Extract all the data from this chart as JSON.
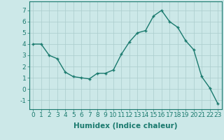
{
  "x": [
    0,
    1,
    2,
    3,
    4,
    5,
    6,
    7,
    8,
    9,
    10,
    11,
    12,
    13,
    14,
    15,
    16,
    17,
    18,
    19,
    20,
    21,
    22,
    23
  ],
  "y": [
    4.0,
    4.0,
    3.0,
    2.7,
    1.5,
    1.1,
    1.0,
    0.9,
    1.4,
    1.4,
    1.7,
    3.1,
    4.2,
    5.0,
    5.2,
    6.5,
    7.0,
    6.0,
    5.5,
    4.3,
    3.5,
    1.1,
    0.1,
    -1.3
  ],
  "xlim": [
    -0.5,
    23.5
  ],
  "ylim": [
    -1.8,
    7.8
  ],
  "yticks": [
    -1,
    0,
    1,
    2,
    3,
    4,
    5,
    6,
    7
  ],
  "xticks": [
    0,
    1,
    2,
    3,
    4,
    5,
    6,
    7,
    8,
    9,
    10,
    11,
    12,
    13,
    14,
    15,
    16,
    17,
    18,
    19,
    20,
    21,
    22,
    23
  ],
  "xlabel": "Humidex (Indice chaleur)",
  "line_color": "#1a7a6e",
  "marker": "+",
  "background_color": "#cce8e8",
  "grid_color": "#aacccc",
  "xlabel_fontsize": 7.5,
  "tick_fontsize": 6.5
}
